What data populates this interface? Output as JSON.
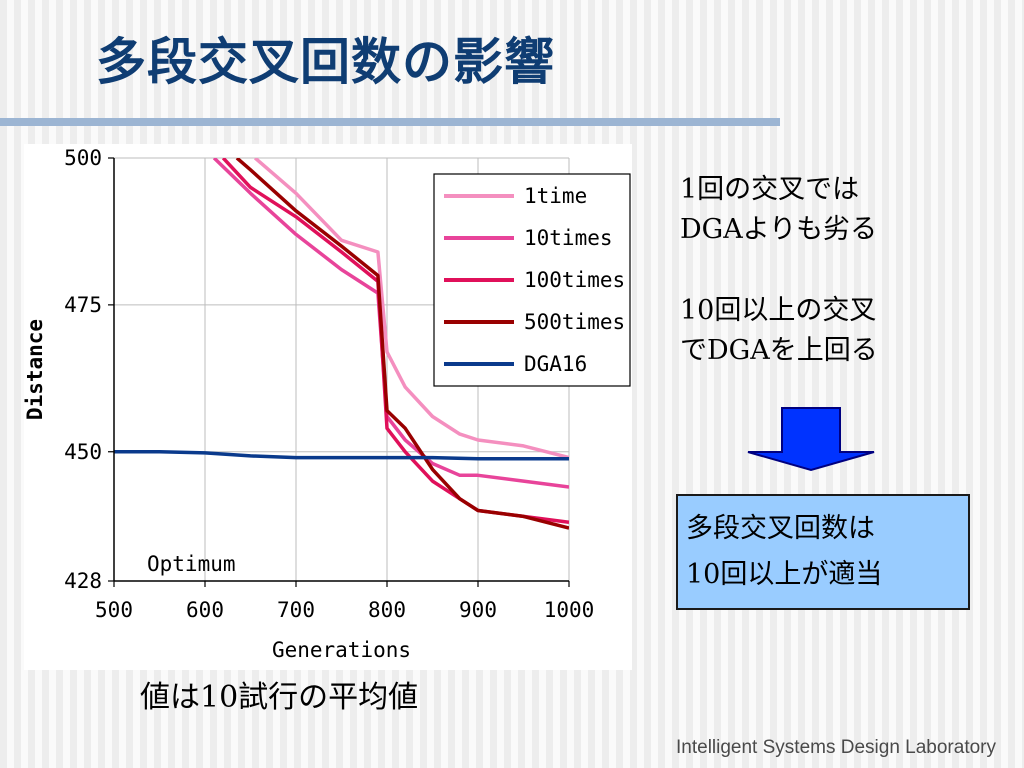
{
  "slide": {
    "title": "多段交叉回数の影響",
    "bullet1_line1": "1回の交叉では",
    "bullet1_line2": "DGAよりも劣る",
    "bullet2_line1": "10回以上の交叉",
    "bullet2_line2": "でDGAを上回る",
    "conclusion_line1": "多段交叉回数は",
    "conclusion_line2": "10回以上が適当",
    "footnote": "値は10試行の平均値",
    "footer": "Intelligent Systems Design Laboratory"
  },
  "colors": {
    "title": "#0f3d73",
    "title_rule": "#9cb5d3",
    "conclusion_bg": "#99ccff",
    "arrow_fill": "#0033ff",
    "arrow_stroke": "#000080"
  },
  "icons": {
    "arrow": "down-arrow-icon"
  },
  "chart_data": {
    "type": "line",
    "xlabel": "Generations",
    "ylabel": "Distance",
    "xlim": [
      500,
      1000
    ],
    "ylim": [
      428,
      500
    ],
    "xticks": [
      500,
      600,
      700,
      800,
      900,
      1000
    ],
    "yticks": [
      428,
      450,
      475,
      500
    ],
    "grid": true,
    "legend_position": "top-right",
    "annotation": "Optimum",
    "series": [
      {
        "name": "1time",
        "color": "#f48fbf",
        "x": [
          655,
          700,
          750,
          790,
          800,
          820,
          850,
          880,
          900,
          950,
          1000
        ],
        "y": [
          500,
          494,
          486,
          484,
          467,
          461,
          456,
          453,
          452,
          451,
          449
        ]
      },
      {
        "name": "10times",
        "color": "#e8449a",
        "x": [
          610,
          650,
          700,
          750,
          790,
          800,
          820,
          850,
          880,
          900,
          950,
          1000
        ],
        "y": [
          500,
          494,
          487,
          481,
          477,
          456,
          452,
          448,
          446,
          446,
          445,
          444
        ]
      },
      {
        "name": "100times",
        "color": "#e0105a",
        "x": [
          620,
          650,
          700,
          750,
          790,
          800,
          820,
          850,
          880,
          900,
          950,
          1000
        ],
        "y": [
          500,
          495,
          490,
          484,
          479,
          454,
          450,
          445,
          442,
          440,
          439,
          438
        ]
      },
      {
        "name": "500times",
        "color": "#990000",
        "x": [
          635,
          650,
          700,
          750,
          790,
          800,
          820,
          850,
          880,
          900,
          950,
          1000
        ],
        "y": [
          500,
          498,
          491,
          485,
          480,
          457,
          454,
          447,
          442,
          440,
          439,
          437
        ]
      },
      {
        "name": "DGA16",
        "color": "#0a3a8c",
        "x": [
          500,
          550,
          600,
          650,
          700,
          750,
          800,
          850,
          900,
          950,
          1000
        ],
        "y": [
          450,
          450,
          449.8,
          449.3,
          449,
          449,
          449,
          449,
          448.8,
          448.8,
          448.8
        ]
      }
    ]
  }
}
